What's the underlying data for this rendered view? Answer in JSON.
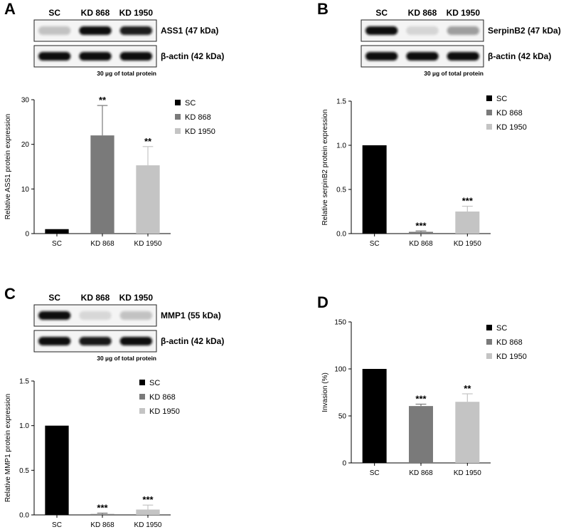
{
  "colors": {
    "SC": "#000000",
    "KD 868": "#7a7a7a",
    "KD 1950": "#c4c4c4"
  },
  "chart_data": [
    {
      "panel": "A",
      "type": "bar",
      "blot": {
        "lanes": [
          "SC",
          "KD 868",
          "KD 1950"
        ],
        "target_label": "ASS1 (47 kDa)",
        "loading_label": "β-actin (42 kDa)",
        "note": "30 µg of total protein",
        "target_intensity": [
          0.12,
          1.0,
          0.92
        ],
        "loading_intensity": [
          1.0,
          1.0,
          1.0
        ]
      },
      "categories": [
        "SC",
        "KD 868",
        "KD 1950"
      ],
      "values": [
        1,
        22,
        15.3
      ],
      "errors": [
        0,
        6.7,
        4.2
      ],
      "significance": [
        "",
        "**",
        "**"
      ],
      "ylabel": "Relative ASS1 protein expression",
      "ylim": [
        0,
        30
      ],
      "yticks": [
        0,
        10,
        20,
        30
      ],
      "legend": [
        "SC",
        "KD 868",
        "KD 1950"
      ],
      "legend_position": "right"
    },
    {
      "panel": "B",
      "type": "bar",
      "blot": {
        "lanes": [
          "SC",
          "KD 868",
          "KD 1950"
        ],
        "target_label": "SerpinB2 (47 kDa)",
        "loading_label": "β-actin (42 kDa)",
        "note": "30 µg of total protein",
        "target_intensity": [
          1.0,
          0.03,
          0.3
        ],
        "loading_intensity": [
          1.0,
          1.0,
          1.0
        ]
      },
      "categories": [
        "SC",
        "KD 868",
        "KD 1950"
      ],
      "values": [
        1.0,
        0.02,
        0.25
      ],
      "errors": [
        0,
        0.01,
        0.06
      ],
      "significance": [
        "",
        "***",
        "***"
      ],
      "ylabel": "Relative serpinB2 protein expression",
      "ylim": [
        0,
        1.5
      ],
      "yticks": [
        0.0,
        0.5,
        1.0,
        1.5
      ],
      "legend": [
        "SC",
        "KD 868",
        "KD 1950"
      ],
      "legend_position": "right"
    },
    {
      "panel": "C",
      "type": "bar",
      "blot": {
        "lanes": [
          "SC",
          "KD 868",
          "KD 1950"
        ],
        "target_label": "MMP1 (55 kDa)",
        "loading_label": "β-actin (42 kDa)",
        "note": "30 µg of total protein",
        "target_intensity": [
          1.0,
          0.02,
          0.12
        ],
        "loading_intensity": [
          1.0,
          0.95,
          1.0
        ]
      },
      "categories": [
        "SC",
        "KD 868",
        "KD 1950"
      ],
      "values": [
        1.0,
        0.01,
        0.06
      ],
      "errors": [
        0,
        0.01,
        0.05
      ],
      "significance": [
        "",
        "***",
        "***"
      ],
      "ylabel": "Relative MMP1 protein expression",
      "ylim": [
        0,
        1.5
      ],
      "yticks": [
        0.0,
        0.5,
        1.0,
        1.5
      ],
      "legend": [
        "SC",
        "KD 868",
        "KD 1950"
      ],
      "legend_position": "right"
    },
    {
      "panel": "D",
      "type": "bar",
      "categories": [
        "SC",
        "KD 868",
        "KD 1950"
      ],
      "values": [
        100,
        60.5,
        65
      ],
      "errors": [
        0,
        2,
        8.5
      ],
      "significance": [
        "",
        "***",
        "**"
      ],
      "ylabel": "Invasion (%)",
      "ylim": [
        0,
        150
      ],
      "yticks": [
        0,
        50,
        100,
        150
      ],
      "legend": [
        "SC",
        "KD 868",
        "KD 1950"
      ],
      "legend_position": "right"
    }
  ]
}
